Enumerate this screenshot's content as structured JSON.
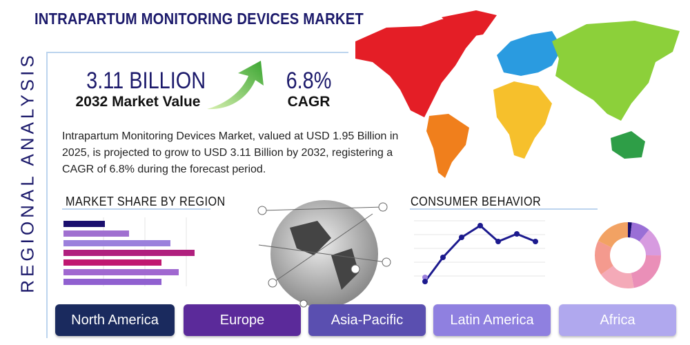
{
  "header": {
    "title": "INTRAPARTUM MONITORING DEVICES MARKET"
  },
  "side_label": "REGIONAL ANALYSIS",
  "stats": [
    {
      "value": "3.11 BILLION",
      "label": "2032 Market Value"
    },
    {
      "value": "6.8%",
      "label": "CAGR"
    }
  ],
  "description": "Intrapartum Monitoring Devices Market, valued at USD 1.95 Billion in 2025, is projected to grow to USD 3.11 Billion by 2032, registering a CAGR of 6.8% during the forecast period.",
  "sections": [
    "MARKET SHARE BY REGION",
    "CONSUMER BEHAVIOR"
  ],
  "regions": [
    "North America",
    "Europe",
    "Asia-Pacific",
    "Latin America",
    "Africa"
  ]
}
